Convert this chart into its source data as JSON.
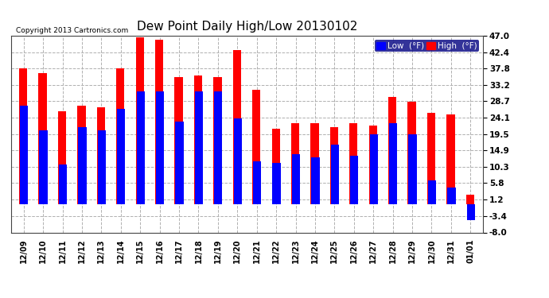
{
  "title": "Dew Point Daily High/Low 20130102",
  "copyright": "Copyright 2013 Cartronics.com",
  "dates": [
    "12/09",
    "12/10",
    "12/11",
    "12/12",
    "12/13",
    "12/14",
    "12/15",
    "12/16",
    "12/17",
    "12/18",
    "12/19",
    "12/20",
    "12/21",
    "12/22",
    "12/23",
    "12/24",
    "12/25",
    "12/26",
    "12/27",
    "12/28",
    "12/29",
    "12/30",
    "12/31",
    "01/01"
  ],
  "high": [
    38.0,
    36.5,
    26.0,
    27.5,
    27.0,
    38.0,
    46.5,
    46.0,
    35.5,
    36.0,
    35.5,
    43.0,
    32.0,
    21.0,
    22.5,
    22.5,
    21.5,
    22.5,
    22.0,
    30.0,
    28.5,
    25.5,
    25.0,
    2.5
  ],
  "low": [
    27.5,
    20.5,
    11.0,
    21.5,
    20.5,
    26.5,
    31.5,
    31.5,
    23.0,
    31.5,
    31.5,
    24.0,
    12.0,
    11.5,
    14.0,
    13.0,
    16.5,
    13.5,
    19.5,
    22.5,
    19.5,
    6.5,
    4.5,
    -4.5
  ],
  "high_color": "#ff0000",
  "low_color": "#0000ff",
  "bg_color": "#ffffff",
  "plot_bg": "#ffffff",
  "grid_color": "#b0b0b0",
  "yticks": [
    -8.0,
    -3.4,
    1.2,
    5.8,
    10.3,
    14.9,
    19.5,
    24.1,
    28.7,
    33.2,
    37.8,
    42.4,
    47.0
  ],
  "ylim": [
    -8.0,
    47.0
  ],
  "title_fontsize": 11,
  "copyright_color": "#000000",
  "legend_low_label": "Low  (°F)",
  "legend_high_label": "High  (°F)"
}
